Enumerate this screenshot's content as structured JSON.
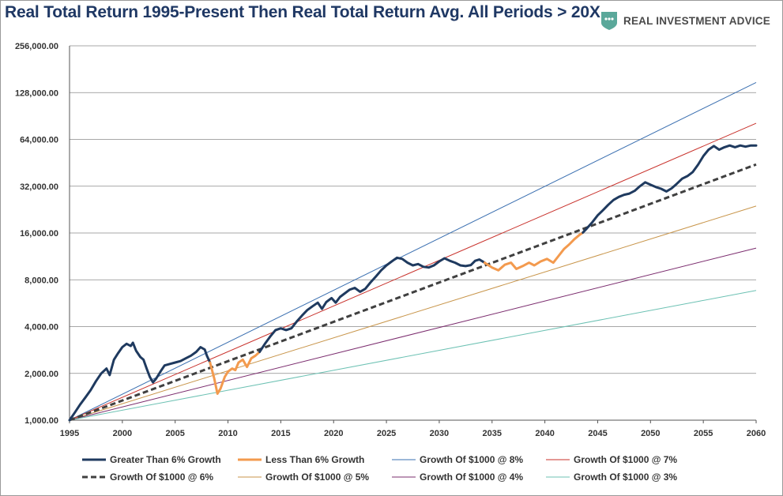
{
  "title": "Real Total Return 1995-Present Then Real Total Return Avg. All Periods > 20X",
  "brand": {
    "name": "REAL INVESTMENT ADVICE",
    "icon": "chat-bubble-shield-icon",
    "color": "#5aa89a"
  },
  "chart_data": {
    "type": "line",
    "y_scale": "log2",
    "xlim": [
      1995,
      2060
    ],
    "ylim": [
      1000,
      256000
    ],
    "x_ticks": [
      1995,
      2000,
      2005,
      2010,
      2015,
      2020,
      2025,
      2030,
      2035,
      2040,
      2045,
      2050,
      2055,
      2060
    ],
    "y_ticks": [
      1000,
      2000,
      4000,
      8000,
      16000,
      32000,
      64000,
      128000,
      256000
    ],
    "y_tick_labels": [
      "1,000.00",
      "2,000.00",
      "4,000.00",
      "8,000.00",
      "16,000.00",
      "32,000.00",
      "64,000.00",
      "128,000.00",
      "256,000.00"
    ],
    "grid": {
      "horizontal": true,
      "vertical": false
    },
    "legend_position": "bottom",
    "growth_lines": [
      {
        "name": "Growth Of $1000 @ 8%",
        "rate": 0.08,
        "color": "#3a6fb0",
        "dashed": false
      },
      {
        "name": "Growth Of $1000 @ 7%",
        "rate": 0.07,
        "color": "#c8302a",
        "dashed": false
      },
      {
        "name": "Growth Of $1000 @ 6%",
        "rate": 0.06,
        "color": "#404040",
        "dashed": true
      },
      {
        "name": "Growth Of $1000 @ 5%",
        "rate": 0.05,
        "color": "#c8954a",
        "dashed": false
      },
      {
        "name": "Growth Of $1000 @ 4%",
        "rate": 0.04,
        "color": "#7b2c6e",
        "dashed": false
      },
      {
        "name": "Growth Of $1000 @ 3%",
        "rate": 0.03,
        "color": "#6cc1b3",
        "dashed": false
      }
    ],
    "return_series": {
      "above_name": "Greater Than 6% Growth",
      "above_color": "#1f3a5f",
      "below_name": "Less Than 6% Growth",
      "below_color": "#f39a4e",
      "points": [
        [
          1995.0,
          1000
        ],
        [
          1995.5,
          1120
        ],
        [
          1996.0,
          1260
        ],
        [
          1996.5,
          1400
        ],
        [
          1997.0,
          1560
        ],
        [
          1997.5,
          1780
        ],
        [
          1998.0,
          2000
        ],
        [
          1998.5,
          2150
        ],
        [
          1998.8,
          1950
        ],
        [
          1999.2,
          2450
        ],
        [
          1999.6,
          2700
        ],
        [
          2000.0,
          2950
        ],
        [
          2000.4,
          3100
        ],
        [
          2000.8,
          3000
        ],
        [
          2001.0,
          3150
        ],
        [
          2001.3,
          2800
        ],
        [
          2001.7,
          2550
        ],
        [
          2002.0,
          2450
        ],
        [
          2002.3,
          2150
        ],
        [
          2002.6,
          1900
        ],
        [
          2002.9,
          1750
        ],
        [
          2003.2,
          1850
        ],
        [
          2003.6,
          2050
        ],
        [
          2004.0,
          2250
        ],
        [
          2004.5,
          2300
        ],
        [
          2005.0,
          2350
        ],
        [
          2005.5,
          2400
        ],
        [
          2006.0,
          2500
        ],
        [
          2006.5,
          2600
        ],
        [
          2007.0,
          2750
        ],
        [
          2007.4,
          2950
        ],
        [
          2007.8,
          2850
        ],
        [
          2008.0,
          2600
        ],
        [
          2008.3,
          2350
        ],
        [
          2008.7,
          1850
        ],
        [
          2009.0,
          1480
        ],
        [
          2009.3,
          1600
        ],
        [
          2009.7,
          1900
        ],
        [
          2010.0,
          2050
        ],
        [
          2010.4,
          2150
        ],
        [
          2010.7,
          2100
        ],
        [
          2011.0,
          2350
        ],
        [
          2011.4,
          2450
        ],
        [
          2011.8,
          2200
        ],
        [
          2012.2,
          2500
        ],
        [
          2012.6,
          2600
        ],
        [
          2013.0,
          2750
        ],
        [
          2013.5,
          3100
        ],
        [
          2014.0,
          3450
        ],
        [
          2014.5,
          3800
        ],
        [
          2015.0,
          3900
        ],
        [
          2015.5,
          3800
        ],
        [
          2016.0,
          3900
        ],
        [
          2016.5,
          4300
        ],
        [
          2017.0,
          4700
        ],
        [
          2017.5,
          5100
        ],
        [
          2018.0,
          5400
        ],
        [
          2018.5,
          5700
        ],
        [
          2018.9,
          5200
        ],
        [
          2019.3,
          5750
        ],
        [
          2019.8,
          6100
        ],
        [
          2020.2,
          5700
        ],
        [
          2020.6,
          6200
        ],
        [
          2021.0,
          6500
        ],
        [
          2021.5,
          6900
        ],
        [
          2022.0,
          7100
        ],
        [
          2022.5,
          6700
        ],
        [
          2023.0,
          7000
        ],
        [
          2023.5,
          7700
        ],
        [
          2024.0,
          8400
        ],
        [
          2024.5,
          9200
        ],
        [
          2025.0,
          9900
        ],
        [
          2025.5,
          10500
        ],
        [
          2026.0,
          11100
        ],
        [
          2026.5,
          10900
        ],
        [
          2027.0,
          10300
        ],
        [
          2027.5,
          9900
        ],
        [
          2028.0,
          10100
        ],
        [
          2028.5,
          9700
        ],
        [
          2029.0,
          9600
        ],
        [
          2029.5,
          9900
        ],
        [
          2030.0,
          10500
        ],
        [
          2030.5,
          11000
        ],
        [
          2031.0,
          10600
        ],
        [
          2031.5,
          10300
        ],
        [
          2032.0,
          9900
        ],
        [
          2032.5,
          9800
        ],
        [
          2033.0,
          9950
        ],
        [
          2033.4,
          10600
        ],
        [
          2033.8,
          10800
        ],
        [
          2034.3,
          10300
        ],
        [
          2035.0,
          9600
        ],
        [
          2035.6,
          9200
        ],
        [
          2036.2,
          10000
        ],
        [
          2036.8,
          10300
        ],
        [
          2037.3,
          9400
        ],
        [
          2037.9,
          9800
        ],
        [
          2038.5,
          10300
        ],
        [
          2039.0,
          9900
        ],
        [
          2039.6,
          10500
        ],
        [
          2040.2,
          10900
        ],
        [
          2040.8,
          10300
        ],
        [
          2041.3,
          11400
        ],
        [
          2041.8,
          12600
        ],
        [
          2042.3,
          13500
        ],
        [
          2042.8,
          14600
        ],
        [
          2043.3,
          15600
        ],
        [
          2043.6,
          16100
        ],
        [
          2044.0,
          17200
        ],
        [
          2044.5,
          18800
        ],
        [
          2045.0,
          20800
        ],
        [
          2045.5,
          22400
        ],
        [
          2046.0,
          24300
        ],
        [
          2046.5,
          26100
        ],
        [
          2047.0,
          27300
        ],
        [
          2047.5,
          28200
        ],
        [
          2048.0,
          28700
        ],
        [
          2048.5,
          29900
        ],
        [
          2049.0,
          32000
        ],
        [
          2049.5,
          33900
        ],
        [
          2050.0,
          32700
        ],
        [
          2050.5,
          31600
        ],
        [
          2051.0,
          30800
        ],
        [
          2051.5,
          29600
        ],
        [
          2052.0,
          31000
        ],
        [
          2052.5,
          33200
        ],
        [
          2053.0,
          35800
        ],
        [
          2053.5,
          37200
        ],
        [
          2054.0,
          39500
        ],
        [
          2054.5,
          44000
        ],
        [
          2055.0,
          50000
        ],
        [
          2055.5,
          55000
        ],
        [
          2056.0,
          58000
        ],
        [
          2056.5,
          55000
        ],
        [
          2057.0,
          57000
        ],
        [
          2057.5,
          58500
        ],
        [
          2058.0,
          57000
        ],
        [
          2058.5,
          58500
        ],
        [
          2059.0,
          57500
        ],
        [
          2059.5,
          58500
        ],
        [
          2060.0,
          58500
        ]
      ]
    }
  }
}
